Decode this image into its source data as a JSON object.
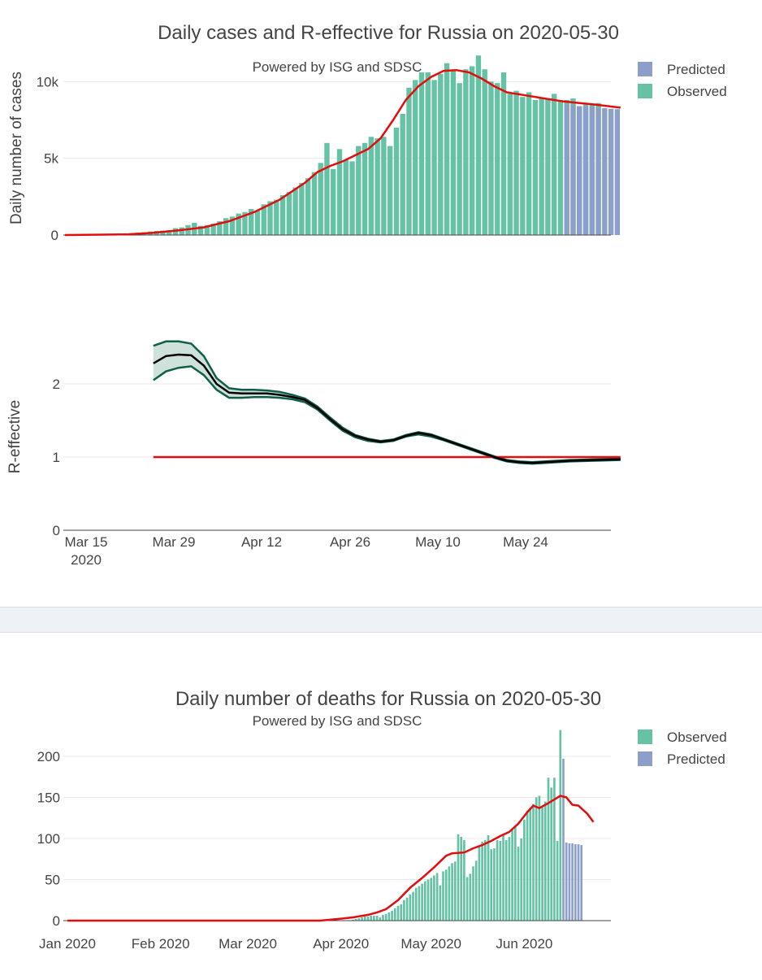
{
  "top_figure": {
    "title": "Daily cases and R-effective for Russia on 2020-05-30",
    "subtitle": "Powered by ISG and SDSC",
    "legend": [
      {
        "label": "Predicted",
        "color": "#8c9fcb"
      },
      {
        "label": "Observed",
        "color": "#66c2a5"
      }
    ],
    "x_ticks": [
      "Mar 15",
      "Mar 29",
      "Apr 12",
      "Apr 26",
      "May 10",
      "May 24"
    ],
    "x_year_label": "2020"
  },
  "chart_data": [
    {
      "type": "bar",
      "title": "Daily cases and R-effective for Russia on 2020-05-30",
      "ylabel": "Daily number of cases",
      "ylim": [
        0,
        11500
      ],
      "y_ticks": [
        {
          "value": 0,
          "label": "0"
        },
        {
          "value": 5000,
          "label": "5k"
        },
        {
          "value": 10000,
          "label": "10k"
        }
      ],
      "x_start": "2020-03-15",
      "observed_start_day": 2,
      "observed": [
        11,
        13,
        18,
        31,
        40,
        54,
        62,
        71,
        100,
        150,
        180,
        230,
        265,
        290,
        310,
        450,
        500,
        650,
        800,
        600,
        650,
        750,
        900,
        1100,
        1200,
        1400,
        1500,
        1700,
        1600,
        2000,
        2200,
        2300,
        2600,
        2800,
        3100,
        3400,
        3700,
        4100,
        4700,
        6000,
        4300,
        5600,
        4900,
        4800,
        5800,
        6000,
        6400,
        6300,
        6400,
        5800,
        7000,
        7900,
        9600,
        10100,
        10600,
        10600,
        10100,
        10500,
        11200,
        10700,
        9900,
        10800,
        11000,
        11700,
        10800,
        10000,
        9900,
        10600,
        9200,
        9400,
        9000,
        9300,
        8800,
        8900,
        8900,
        9200,
        8800,
        8800,
        8900,
        8400,
        8500,
        8500,
        8600
      ],
      "predicted_start_day": 79,
      "predicted": [
        8500,
        8450,
        8400,
        8380,
        8350,
        8300,
        8270,
        8230,
        8200
      ],
      "fit_line": [
        {
          "day": 0,
          "value": 0
        },
        {
          "day": 10,
          "value": 50
        },
        {
          "day": 14,
          "value": 150
        },
        {
          "day": 18,
          "value": 300
        },
        {
          "day": 22,
          "value": 500
        },
        {
          "day": 26,
          "value": 900
        },
        {
          "day": 30,
          "value": 1500
        },
        {
          "day": 34,
          "value": 2300
        },
        {
          "day": 38,
          "value": 3400
        },
        {
          "day": 40,
          "value": 4100
        },
        {
          "day": 42,
          "value": 4500
        },
        {
          "day": 44,
          "value": 4800
        },
        {
          "day": 46,
          "value": 5200
        },
        {
          "day": 48,
          "value": 5600
        },
        {
          "day": 50,
          "value": 6300
        },
        {
          "day": 52,
          "value": 7500
        },
        {
          "day": 54,
          "value": 8800
        },
        {
          "day": 56,
          "value": 9700
        },
        {
          "day": 58,
          "value": 10300
        },
        {
          "day": 60,
          "value": 10700
        },
        {
          "day": 62,
          "value": 10750
        },
        {
          "day": 64,
          "value": 10600
        },
        {
          "day": 66,
          "value": 10200
        },
        {
          "day": 68,
          "value": 9700
        },
        {
          "day": 70,
          "value": 9300
        },
        {
          "day": 73,
          "value": 9100
        },
        {
          "day": 76,
          "value": 8900
        },
        {
          "day": 79,
          "value": 8700
        },
        {
          "day": 84,
          "value": 8500
        },
        {
          "day": 88,
          "value": 8300
        }
      ]
    },
    {
      "type": "line",
      "ylabel": "R-effective",
      "ylim": [
        0,
        2.9
      ],
      "y_ticks": [
        {
          "value": 0,
          "label": "0"
        },
        {
          "value": 1,
          "label": "1"
        },
        {
          "value": 2,
          "label": "2"
        }
      ],
      "x_start": "2020-03-15",
      "reference_line": {
        "value": 1,
        "start_day": 14,
        "end_day": 88
      },
      "series": [
        {
          "name": "R-effective",
          "color": "#000000",
          "points": [
            {
              "day": 14,
              "value": 2.28
            },
            {
              "day": 16,
              "value": 2.38
            },
            {
              "day": 18,
              "value": 2.4
            },
            {
              "day": 20,
              "value": 2.39
            },
            {
              "day": 22,
              "value": 2.25
            },
            {
              "day": 24,
              "value": 2.0
            },
            {
              "day": 26,
              "value": 1.88
            },
            {
              "day": 28,
              "value": 1.87
            },
            {
              "day": 30,
              "value": 1.87
            },
            {
              "day": 32,
              "value": 1.87
            },
            {
              "day": 34,
              "value": 1.85
            },
            {
              "day": 36,
              "value": 1.82
            },
            {
              "day": 38,
              "value": 1.78
            },
            {
              "day": 40,
              "value": 1.67
            },
            {
              "day": 42,
              "value": 1.52
            },
            {
              "day": 44,
              "value": 1.38
            },
            {
              "day": 46,
              "value": 1.29
            },
            {
              "day": 48,
              "value": 1.24
            },
            {
              "day": 50,
              "value": 1.21
            },
            {
              "day": 52,
              "value": 1.23
            },
            {
              "day": 54,
              "value": 1.29
            },
            {
              "day": 56,
              "value": 1.33
            },
            {
              "day": 58,
              "value": 1.3
            },
            {
              "day": 60,
              "value": 1.24
            },
            {
              "day": 62,
              "value": 1.18
            },
            {
              "day": 64,
              "value": 1.12
            },
            {
              "day": 66,
              "value": 1.06
            },
            {
              "day": 68,
              "value": 1.0
            },
            {
              "day": 70,
              "value": 0.95
            },
            {
              "day": 72,
              "value": 0.93
            },
            {
              "day": 74,
              "value": 0.92
            },
            {
              "day": 76,
              "value": 0.93
            },
            {
              "day": 80,
              "value": 0.95
            },
            {
              "day": 84,
              "value": 0.96
            },
            {
              "day": 88,
              "value": 0.97
            }
          ]
        },
        {
          "name": "upper",
          "color": "#0f5f4a",
          "points": [
            {
              "day": 14,
              "value": 2.52
            },
            {
              "day": 16,
              "value": 2.58
            },
            {
              "day": 18,
              "value": 2.58
            },
            {
              "day": 20,
              "value": 2.55
            },
            {
              "day": 22,
              "value": 2.38
            },
            {
              "day": 24,
              "value": 2.08
            },
            {
              "day": 26,
              "value": 1.94
            },
            {
              "day": 28,
              "value": 1.92
            },
            {
              "day": 30,
              "value": 1.92
            },
            {
              "day": 32,
              "value": 1.91
            },
            {
              "day": 34,
              "value": 1.89
            },
            {
              "day": 36,
              "value": 1.85
            },
            {
              "day": 38,
              "value": 1.8
            },
            {
              "day": 40,
              "value": 1.69
            },
            {
              "day": 42,
              "value": 1.54
            },
            {
              "day": 44,
              "value": 1.4
            },
            {
              "day": 46,
              "value": 1.3
            },
            {
              "day": 48,
              "value": 1.25
            },
            {
              "day": 50,
              "value": 1.22
            },
            {
              "day": 52,
              "value": 1.24
            },
            {
              "day": 54,
              "value": 1.3
            },
            {
              "day": 56,
              "value": 1.34
            },
            {
              "day": 58,
              "value": 1.31
            },
            {
              "day": 60,
              "value": 1.25
            },
            {
              "day": 62,
              "value": 1.19
            },
            {
              "day": 64,
              "value": 1.13
            },
            {
              "day": 66,
              "value": 1.07
            },
            {
              "day": 68,
              "value": 1.01
            },
            {
              "day": 70,
              "value": 0.96
            },
            {
              "day": 72,
              "value": 0.94
            },
            {
              "day": 74,
              "value": 0.93
            },
            {
              "day": 76,
              "value": 0.94
            },
            {
              "day": 80,
              "value": 0.96
            },
            {
              "day": 84,
              "value": 0.97
            },
            {
              "day": 88,
              "value": 0.98
            }
          ]
        },
        {
          "name": "lower",
          "color": "#0f5f4a",
          "points": [
            {
              "day": 14,
              "value": 2.05
            },
            {
              "day": 16,
              "value": 2.17
            },
            {
              "day": 18,
              "value": 2.22
            },
            {
              "day": 20,
              "value": 2.24
            },
            {
              "day": 22,
              "value": 2.12
            },
            {
              "day": 24,
              "value": 1.92
            },
            {
              "day": 26,
              "value": 1.81
            },
            {
              "day": 28,
              "value": 1.81
            },
            {
              "day": 30,
              "value": 1.82
            },
            {
              "day": 32,
              "value": 1.82
            },
            {
              "day": 34,
              "value": 1.81
            },
            {
              "day": 36,
              "value": 1.79
            },
            {
              "day": 38,
              "value": 1.75
            },
            {
              "day": 40,
              "value": 1.65
            },
            {
              "day": 42,
              "value": 1.5
            },
            {
              "day": 44,
              "value": 1.36
            },
            {
              "day": 46,
              "value": 1.27
            },
            {
              "day": 48,
              "value": 1.22
            },
            {
              "day": 50,
              "value": 1.2
            },
            {
              "day": 52,
              "value": 1.22
            },
            {
              "day": 54,
              "value": 1.28
            },
            {
              "day": 56,
              "value": 1.31
            },
            {
              "day": 58,
              "value": 1.28
            },
            {
              "day": 60,
              "value": 1.23
            },
            {
              "day": 62,
              "value": 1.17
            },
            {
              "day": 64,
              "value": 1.11
            },
            {
              "day": 66,
              "value": 1.05
            },
            {
              "day": 68,
              "value": 0.99
            },
            {
              "day": 70,
              "value": 0.94
            },
            {
              "day": 72,
              "value": 0.92
            },
            {
              "day": 74,
              "value": 0.91
            },
            {
              "day": 76,
              "value": 0.92
            },
            {
              "day": 80,
              "value": 0.94
            },
            {
              "day": 84,
              "value": 0.95
            },
            {
              "day": 88,
              "value": 0.96
            }
          ]
        }
      ]
    },
    {
      "type": "bar",
      "title": "Daily number of deaths for Russia on 2020-05-30",
      "subtitle": "Powered by ISG and SDSC",
      "ylim": [
        0,
        240
      ],
      "y_ticks": [
        {
          "value": 0,
          "label": "0"
        },
        {
          "value": 50,
          "label": "50"
        },
        {
          "value": 100,
          "label": "100"
        },
        {
          "value": 150,
          "label": "150"
        },
        {
          "value": 200,
          "label": "200"
        }
      ],
      "x_start": "2020-01-01",
      "x_ticks": [
        {
          "day": 0,
          "label": "Jan 2020"
        },
        {
          "day": 31,
          "label": "Feb 2020"
        },
        {
          "day": 60,
          "label": "Mar 2020"
        },
        {
          "day": 91,
          "label": "Apr 2020"
        },
        {
          "day": 121,
          "label": "May 2020"
        },
        {
          "day": 152,
          "label": "Jun 2020"
        }
      ],
      "legend": [
        {
          "label": "Observed",
          "color": "#66c2a5"
        },
        {
          "label": "Predicted",
          "color": "#8c9fcb"
        }
      ],
      "observed_start_day": 95,
      "observed": [
        1,
        2,
        3,
        4,
        5,
        5,
        6,
        6,
        6,
        4,
        7,
        8,
        10,
        12,
        15,
        18,
        20,
        25,
        28,
        32,
        35,
        40,
        42,
        45,
        48,
        50,
        52,
        55,
        58,
        43,
        60,
        62,
        66,
        70,
        72,
        105,
        102,
        98,
        53,
        57,
        66,
        73,
        90,
        96,
        98,
        104,
        87,
        88,
        98,
        97,
        104,
        98,
        102,
        112,
        114,
        90,
        100,
        123,
        134,
        138,
        142,
        150,
        152,
        139,
        145,
        174,
        162,
        174,
        97,
        232
      ],
      "predicted_start_day": 165,
      "predicted": [
        197,
        95,
        94,
        94,
        93,
        93,
        92
      ],
      "fit_line": [
        {
          "day": 0,
          "value": 0
        },
        {
          "day": 84,
          "value": 0
        },
        {
          "day": 90,
          "value": 2
        },
        {
          "day": 95,
          "value": 4
        },
        {
          "day": 100,
          "value": 7
        },
        {
          "day": 103,
          "value": 10
        },
        {
          "day": 106,
          "value": 14
        },
        {
          "day": 110,
          "value": 25
        },
        {
          "day": 114,
          "value": 40
        },
        {
          "day": 118,
          "value": 52
        },
        {
          "day": 122,
          "value": 65
        },
        {
          "day": 126,
          "value": 79
        },
        {
          "day": 128,
          "value": 82
        },
        {
          "day": 132,
          "value": 83
        },
        {
          "day": 135,
          "value": 88
        },
        {
          "day": 138,
          "value": 92
        },
        {
          "day": 141,
          "value": 97
        },
        {
          "day": 144,
          "value": 103
        },
        {
          "day": 147,
          "value": 108
        },
        {
          "day": 150,
          "value": 118
        },
        {
          "day": 153,
          "value": 132
        },
        {
          "day": 155,
          "value": 140
        },
        {
          "day": 157,
          "value": 137
        },
        {
          "day": 160,
          "value": 143
        },
        {
          "day": 164,
          "value": 152
        },
        {
          "day": 166,
          "value": 150
        },
        {
          "day": 168,
          "value": 141
        },
        {
          "day": 170,
          "value": 140
        },
        {
          "day": 173,
          "value": 130
        },
        {
          "day": 175,
          "value": 120
        }
      ]
    }
  ]
}
